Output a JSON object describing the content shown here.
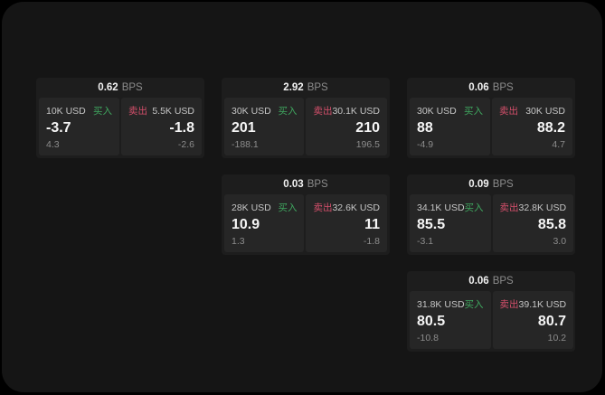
{
  "labels": {
    "bps_unit": "BPS",
    "buy": "买入",
    "sell": "卖出"
  },
  "theme": {
    "outer_background": "#000000",
    "surface": "#151515",
    "card_background": "#1d1d1d",
    "panel_background": "#262626",
    "buy_green": "#3fa75f",
    "sell_red": "#d44f6b",
    "value_white": "#f5f5f5",
    "muted_gray": "#8c8c8c",
    "label_gray": "#c6c6c6"
  },
  "cards": [
    {
      "bps": "0.62",
      "buy": {
        "amount": "10K USD",
        "price": "-3.7",
        "change": "4.3"
      },
      "sell": {
        "amount": "5.5K USD",
        "price": "-1.8",
        "change": "-2.6"
      }
    },
    {
      "bps": "2.92",
      "buy": {
        "amount": "30K USD",
        "price": "201",
        "change": "-188.1"
      },
      "sell": {
        "amount": "30.1K USD",
        "price": "210",
        "change": "196.5"
      }
    },
    {
      "bps": "0.06",
      "buy": {
        "amount": "30K USD",
        "price": "88",
        "change": "-4.9"
      },
      "sell": {
        "amount": "30K USD",
        "price": "88.2",
        "change": "4.7"
      }
    },
    {
      "bps": "0.03",
      "buy": {
        "amount": "28K USD",
        "price": "10.9",
        "change": "1.3"
      },
      "sell": {
        "amount": "32.6K USD",
        "price": "11",
        "change": "-1.8"
      }
    },
    {
      "bps": "0.09",
      "buy": {
        "amount": "34.1K USD",
        "price": "85.5",
        "change": "-3.1"
      },
      "sell": {
        "amount": "32.8K USD",
        "price": "85.8",
        "change": "3.0"
      }
    },
    {
      "bps": "0.06",
      "buy": {
        "amount": "31.8K USD",
        "price": "80.5",
        "change": "-10.8"
      },
      "sell": {
        "amount": "39.1K USD",
        "price": "80.7",
        "change": "10.2"
      }
    }
  ]
}
